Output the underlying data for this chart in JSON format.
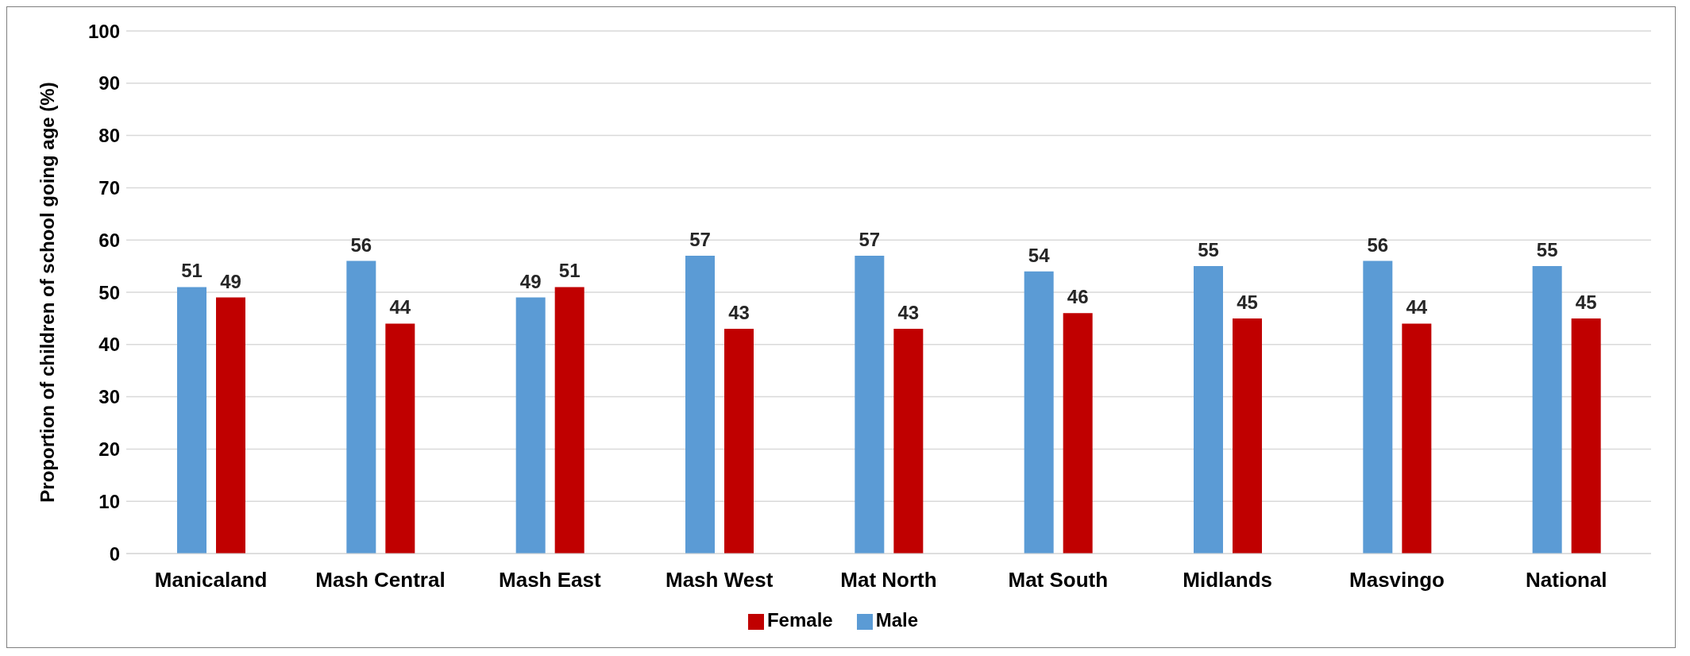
{
  "chart_data": {
    "type": "bar",
    "ylabel": "Proportion of children of school going age (%)",
    "categories": [
      "Manicaland",
      "Mash Central",
      "Mash East",
      "Mash West",
      "Mat North",
      "Mat South",
      "Midlands",
      "Masvingo",
      "National"
    ],
    "series": [
      {
        "name": "Male",
        "color": "#5b9bd5",
        "values": [
          51,
          56,
          49,
          57,
          57,
          54,
          55,
          56,
          55
        ]
      },
      {
        "name": "Female",
        "color": "#c00000",
        "values": [
          49,
          44,
          51,
          43,
          43,
          46,
          45,
          44,
          45
        ]
      }
    ],
    "ylim": [
      0,
      100
    ],
    "yticks": [
      0,
      10,
      20,
      30,
      40,
      50,
      60,
      70,
      80,
      90,
      100
    ],
    "grid": "y",
    "legend": "bottom",
    "data_labels": true
  }
}
